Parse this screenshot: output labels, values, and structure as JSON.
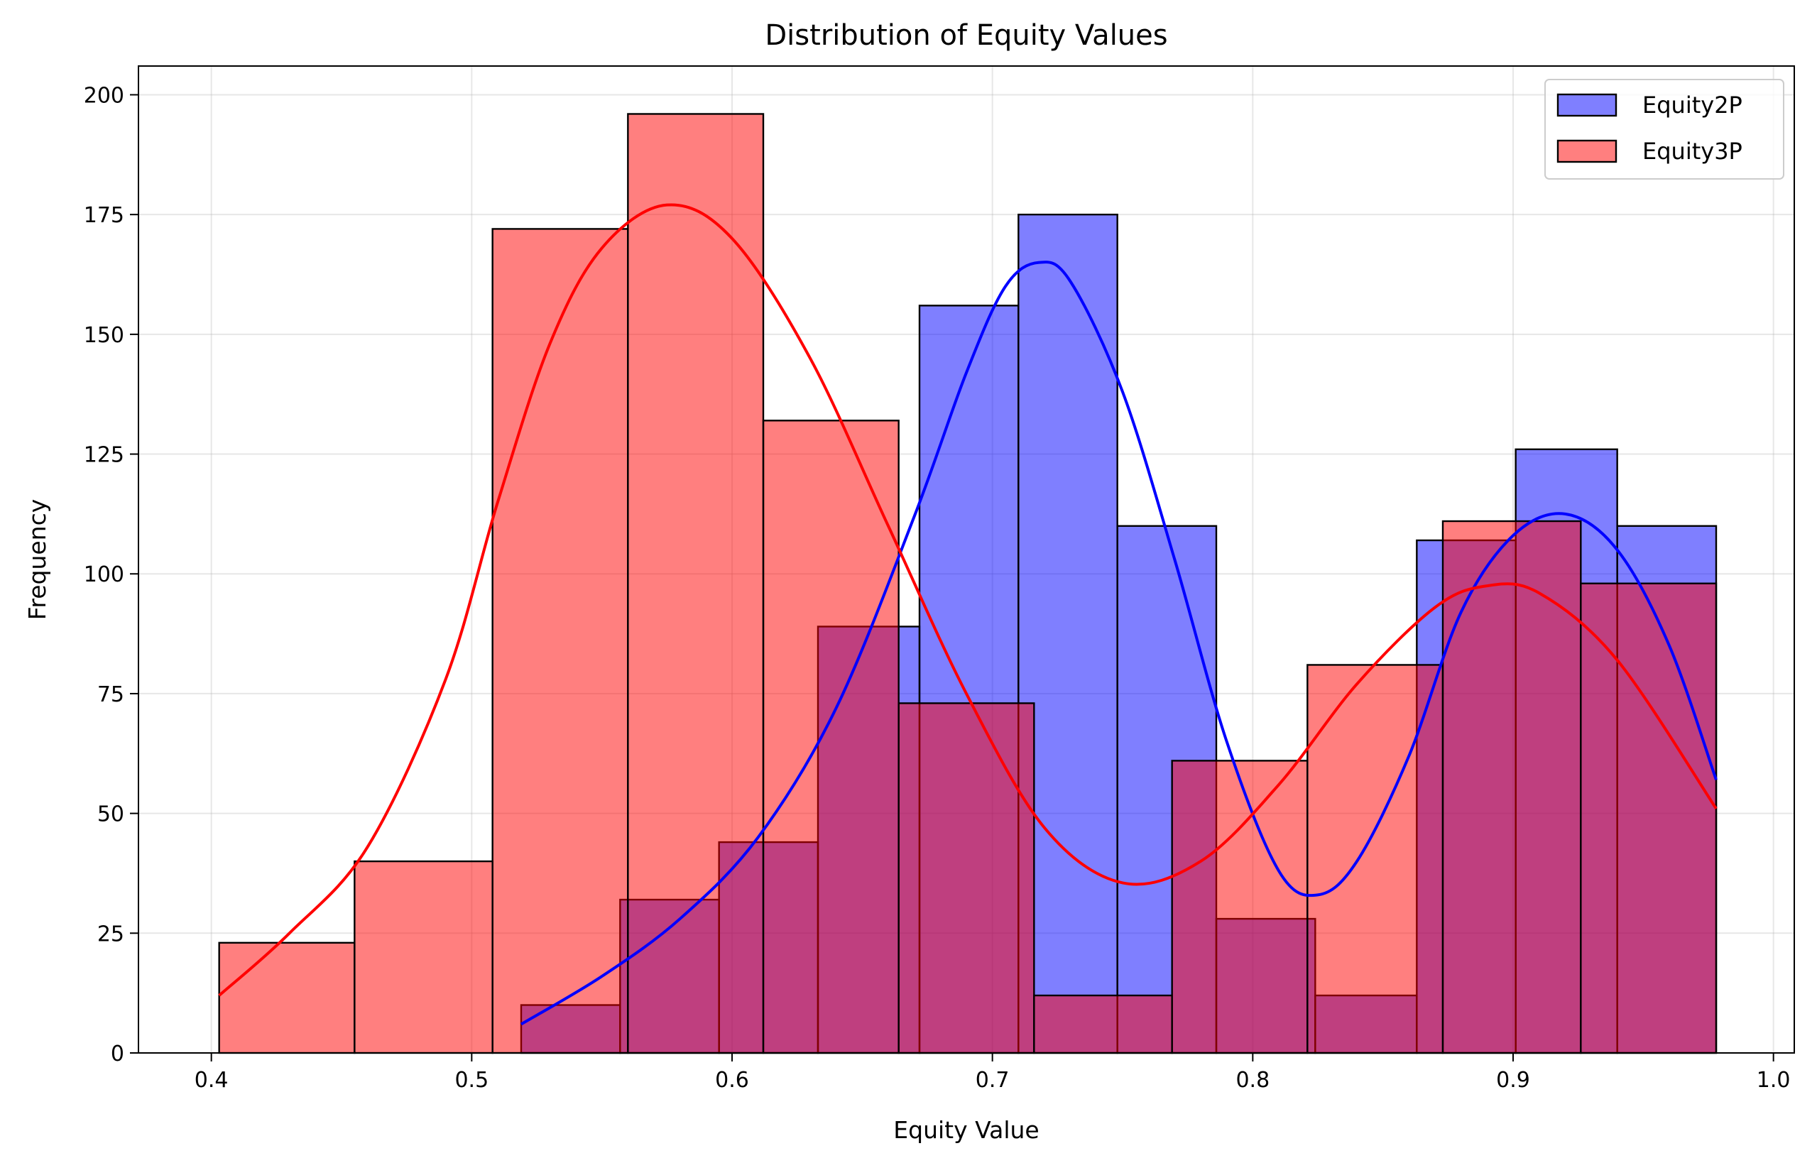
{
  "chart_data": {
    "type": "histogram",
    "title": "Distribution of Equity Values",
    "xlabel": "Equity Value",
    "ylabel": "Frequency",
    "xlim": [
      0.372,
      1.008
    ],
    "ylim": [
      0,
      206
    ],
    "xticks": [
      0.4,
      0.5,
      0.6,
      0.7,
      0.8,
      0.9,
      1.0
    ],
    "xtick_labels": [
      "0.4",
      "0.5",
      "0.6",
      "0.7",
      "0.8",
      "0.9",
      "1.0"
    ],
    "yticks": [
      0,
      25,
      50,
      75,
      100,
      125,
      150,
      175,
      200
    ],
    "ytick_labels": [
      "0",
      "25",
      "50",
      "75",
      "100",
      "125",
      "150",
      "175",
      "200"
    ],
    "grid": true,
    "legend_position": "top-right",
    "series": [
      {
        "name": "Equity2P",
        "color": "#0000ff",
        "bins": [
          {
            "x0": 0.519,
            "x1": 0.557,
            "count": 10
          },
          {
            "x0": 0.557,
            "x1": 0.595,
            "count": 32
          },
          {
            "x0": 0.595,
            "x1": 0.633,
            "count": 44
          },
          {
            "x0": 0.633,
            "x1": 0.672,
            "count": 89
          },
          {
            "x0": 0.672,
            "x1": 0.71,
            "count": 156
          },
          {
            "x0": 0.71,
            "x1": 0.748,
            "count": 175
          },
          {
            "x0": 0.748,
            "x1": 0.786,
            "count": 110
          },
          {
            "x0": 0.786,
            "x1": 0.824,
            "count": 28
          },
          {
            "x0": 0.824,
            "x1": 0.863,
            "count": 12
          },
          {
            "x0": 0.863,
            "x1": 0.901,
            "count": 107
          },
          {
            "x0": 0.901,
            "x1": 0.94,
            "count": 126
          },
          {
            "x0": 0.94,
            "x1": 0.978,
            "count": 110
          }
        ],
        "kde": [
          [
            0.519,
            6
          ],
          [
            0.55,
            16
          ],
          [
            0.58,
            28
          ],
          [
            0.61,
            45
          ],
          [
            0.64,
            72
          ],
          [
            0.67,
            112
          ],
          [
            0.69,
            142
          ],
          [
            0.705,
            160
          ],
          [
            0.718,
            165
          ],
          [
            0.73,
            161
          ],
          [
            0.75,
            138
          ],
          [
            0.77,
            103
          ],
          [
            0.79,
            65
          ],
          [
            0.81,
            38
          ],
          [
            0.825,
            33
          ],
          [
            0.84,
            40
          ],
          [
            0.86,
            62
          ],
          [
            0.88,
            92
          ],
          [
            0.9,
            108
          ],
          [
            0.92,
            112.5
          ],
          [
            0.94,
            105
          ],
          [
            0.96,
            85
          ],
          [
            0.978,
            57
          ]
        ]
      },
      {
        "name": "Equity3P",
        "color": "#ff0000",
        "bins": [
          {
            "x0": 0.403,
            "x1": 0.455,
            "count": 23
          },
          {
            "x0": 0.455,
            "x1": 0.508,
            "count": 40
          },
          {
            "x0": 0.508,
            "x1": 0.56,
            "count": 172
          },
          {
            "x0": 0.56,
            "x1": 0.612,
            "count": 196
          },
          {
            "x0": 0.612,
            "x1": 0.664,
            "count": 132
          },
          {
            "x0": 0.664,
            "x1": 0.716,
            "count": 73
          },
          {
            "x0": 0.716,
            "x1": 0.769,
            "count": 12
          },
          {
            "x0": 0.769,
            "x1": 0.821,
            "count": 61
          },
          {
            "x0": 0.821,
            "x1": 0.873,
            "count": 81
          },
          {
            "x0": 0.873,
            "x1": 0.926,
            "count": 111
          },
          {
            "x0": 0.926,
            "x1": 0.978,
            "count": 98
          }
        ],
        "kde": [
          [
            0.403,
            12
          ],
          [
            0.43,
            25
          ],
          [
            0.46,
            43
          ],
          [
            0.49,
            78
          ],
          [
            0.51,
            115
          ],
          [
            0.53,
            148
          ],
          [
            0.55,
            168
          ],
          [
            0.575,
            177
          ],
          [
            0.6,
            170
          ],
          [
            0.63,
            145
          ],
          [
            0.66,
            110
          ],
          [
            0.69,
            75
          ],
          [
            0.72,
            47
          ],
          [
            0.75,
            35.5
          ],
          [
            0.78,
            40
          ],
          [
            0.81,
            56
          ],
          [
            0.84,
            77
          ],
          [
            0.87,
            93
          ],
          [
            0.89,
            97.5
          ],
          [
            0.91,
            96
          ],
          [
            0.94,
            82
          ],
          [
            0.978,
            51
          ]
        ]
      }
    ]
  }
}
